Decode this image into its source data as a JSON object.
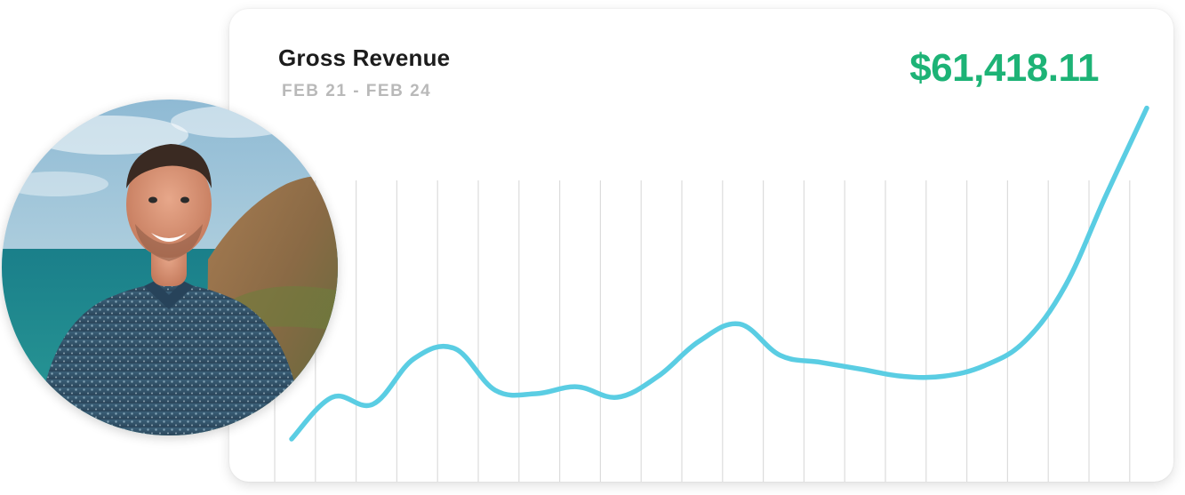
{
  "card": {
    "title": "Gross Revenue",
    "date_range": "FEB 21 - FEB 24",
    "total": "$61,418.11"
  },
  "colors": {
    "line": "#5acde3",
    "total": "#1db376",
    "gridline": "#dcdcdc"
  },
  "avatar": {
    "icon": "profile-photo"
  },
  "chart_data": {
    "type": "line",
    "title": "Gross Revenue",
    "grid": "vertical",
    "axes_shown": false,
    "ylim": [
      0,
      100
    ],
    "series": [
      {
        "values": [
          0,
          12,
          10,
          23,
          26,
          14,
          13,
          15,
          12,
          18,
          28,
          33,
          24,
          22,
          20,
          18,
          18,
          21,
          28,
          44,
          70,
          95
        ]
      }
    ]
  }
}
